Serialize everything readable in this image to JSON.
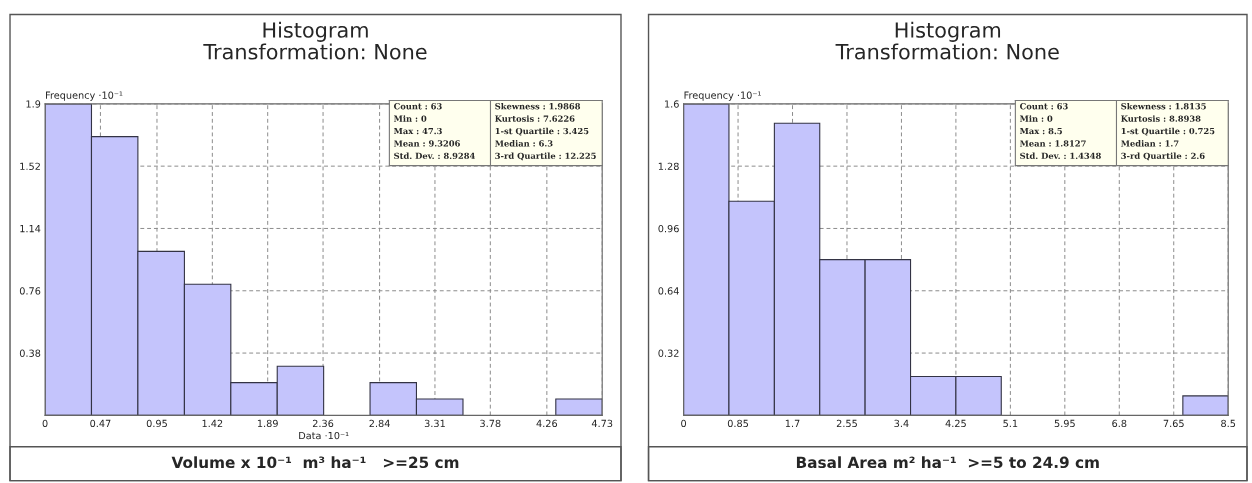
{
  "chart_data": [
    {
      "type": "histogram",
      "title": "Histogram\nTransformation: None",
      "xlabel": "Data ·10⁻¹",
      "ylabel": "Frequency ·10⁻¹",
      "color": "#c4c4fc",
      "bins": [
        0,
        0.394,
        0.788,
        1.183,
        1.577,
        1.971,
        2.365,
        2.759,
        3.153,
        3.548,
        3.942,
        4.336,
        4.73
      ],
      "values": [
        1.9,
        1.7,
        1.0,
        0.8,
        0.2,
        0.3,
        0,
        0.2,
        0.1,
        0,
        0,
        0.1
      ],
      "xlim": [
        0,
        4.73
      ],
      "ylim": [
        0,
        1.9
      ],
      "xticks": [
        0,
        0.47,
        0.95,
        1.42,
        1.89,
        2.36,
        2.84,
        3.31,
        3.78,
        4.26,
        4.73
      ],
      "yticks": [
        0.38,
        0.76,
        1.14,
        1.52,
        1.9
      ],
      "grid": true,
      "annotations": [
        "Count : 63",
        "Min : 0",
        "Max : 47.3",
        "Mean : 9.3206",
        "Std. Dev. : 8.9284",
        "Skewness : 1.9868",
        "Kurtosis : 7.6226",
        "1-st Quartile : 3.425",
        "Median : 6.3",
        "3-rd Quartile : 12.225",
        "Volume x 10⁻¹  m³ ha⁻¹   >=25 cm"
      ]
    },
    {
      "type": "histogram",
      "title": "Histogram\nTransformation: None",
      "ylabel": "Frequency ·10⁻¹",
      "color": "#c4c4fc",
      "bins": [
        0,
        0.708,
        1.417,
        2.125,
        2.833,
        3.542,
        4.25,
        4.958,
        5.667,
        6.375,
        7.083,
        7.792,
        8.5
      ],
      "values": [
        1.6,
        1.1,
        1.5,
        0.8,
        0.8,
        0.2,
        0.2,
        0,
        0,
        0,
        0,
        0.1
      ],
      "xlim": [
        0,
        8.5
      ],
      "ylim": [
        0,
        1.6
      ],
      "xticks": [
        0,
        0.85,
        1.7,
        2.55,
        3.4,
        4.25,
        5.1,
        5.95,
        6.8,
        7.65,
        8.5
      ],
      "yticks": [
        0.32,
        0.64,
        0.96,
        1.28,
        1.6
      ],
      "grid": true,
      "annotations": [
        "Count : 63",
        "Min : 0",
        "Max : 8.5",
        "Mean : 1.8127",
        "Std. Dev. : 1.4348",
        "Skewness : 1.8135",
        "Kurtosis : 8.8938",
        "1-st Quartile : 0.725",
        "Median : 1.7",
        "3-rd Quartile : 2.6",
        "Basal Area m² ha⁻¹  >=5 to 24.9 cm"
      ]
    }
  ]
}
